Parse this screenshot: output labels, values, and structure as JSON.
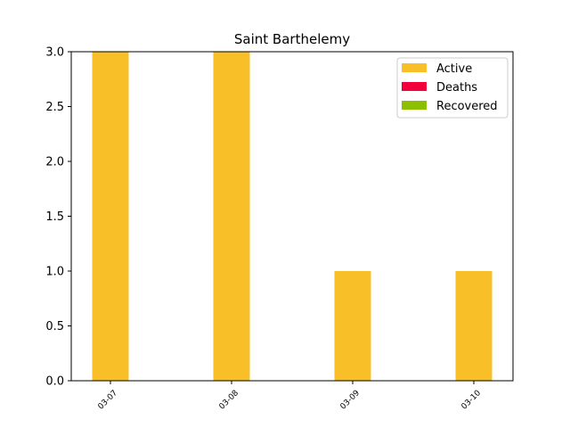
{
  "chart_data": {
    "type": "bar",
    "stacked": true,
    "title": "Saint Barthelemy",
    "xlabel": "",
    "ylabel": "",
    "categories": [
      "03-07",
      "03-08",
      "03-09",
      "03-10"
    ],
    "series": [
      {
        "name": "Active",
        "color": "#f9bf29",
        "values": [
          3,
          3,
          1,
          1
        ]
      },
      {
        "name": "Deaths",
        "color": "#f2003c",
        "values": [
          0,
          0,
          0,
          0
        ]
      },
      {
        "name": "Recovered",
        "color": "#8bbf00",
        "values": [
          0,
          0,
          0,
          0
        ]
      }
    ],
    "ylim": [
      0,
      3.0
    ],
    "yticks": [
      "0.0",
      "0.5",
      "1.0",
      "1.5",
      "2.0",
      "2.5",
      "3.0"
    ],
    "grid": false,
    "legend": "top-right"
  }
}
